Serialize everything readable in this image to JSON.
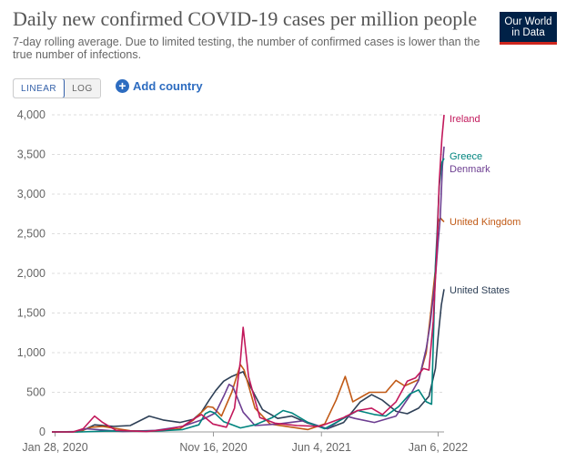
{
  "header": {
    "title": "Daily new confirmed COVID-19 cases per million people",
    "subtitle": "7-day rolling average. Due to limited testing, the number of confirmed cases is lower than the true number of infections.",
    "logo_line1": "Our World",
    "logo_line2": "in Data"
  },
  "controls": {
    "linear_label": "LINEAR",
    "log_label": "LOG",
    "add_country_label": "Add country",
    "selected_scale": "linear"
  },
  "colors": {
    "Ireland": "#c2185b",
    "Greece": "#00847e",
    "Denmark": "#6d3e91",
    "United Kingdom": "#c15a16",
    "United States": "#2e4057"
  },
  "chart_data": {
    "type": "line",
    "title": "Daily new confirmed COVID-19 cases per million people",
    "subtitle": "7-day rolling average. Due to limited testing, the number of confirmed cases is lower than the true number of infections.",
    "ylim": [
      0,
      4000
    ],
    "y_ticks": [
      0,
      500,
      1000,
      1500,
      2000,
      2500,
      3000,
      3500,
      4000
    ],
    "y_tick_labels": [
      "0",
      "500",
      "1,000",
      "1,500",
      "2,000",
      "2,500",
      "3,000",
      "3,500",
      "4,000"
    ],
    "x_range": [
      "2020-01-22",
      "2022-01-17"
    ],
    "x_ticks": [
      "2020-01-28",
      "2020-11-16",
      "2021-06-04",
      "2022-01-06"
    ],
    "x_tick_labels": [
      "Jan 28, 2020",
      "Nov 16, 2020",
      "Jun 4, 2021",
      "Jan 6, 2022"
    ],
    "grid": "horizontal dashed",
    "legend": "line-end labels",
    "series": [
      {
        "name": "Ireland",
        "points": [
          [
            "2020-01-22",
            0
          ],
          [
            "2020-03-01",
            0
          ],
          [
            "2020-03-20",
            40
          ],
          [
            "2020-04-10",
            200
          ],
          [
            "2020-04-25",
            120
          ],
          [
            "2020-05-20",
            20
          ],
          [
            "2020-07-15",
            5
          ],
          [
            "2020-08-20",
            30
          ],
          [
            "2020-09-20",
            70
          ],
          [
            "2020-10-10",
            160
          ],
          [
            "2020-10-25",
            220
          ],
          [
            "2020-11-15",
            100
          ],
          [
            "2020-12-10",
            60
          ],
          [
            "2020-12-25",
            300
          ],
          [
            "2021-01-05",
            900
          ],
          [
            "2021-01-10",
            1320
          ],
          [
            "2021-01-20",
            700
          ],
          [
            "2021-02-10",
            180
          ],
          [
            "2021-03-10",
            110
          ],
          [
            "2021-04-20",
            80
          ],
          [
            "2021-06-01",
            70
          ],
          [
            "2021-07-15",
            180
          ],
          [
            "2021-08-10",
            270
          ],
          [
            "2021-09-05",
            300
          ],
          [
            "2021-09-25",
            220
          ],
          [
            "2021-10-20",
            380
          ],
          [
            "2021-11-10",
            640
          ],
          [
            "2021-11-25",
            680
          ],
          [
            "2021-12-10",
            800
          ],
          [
            "2021-12-20",
            780
          ],
          [
            "2021-12-28",
            1400
          ],
          [
            "2022-01-03",
            2200
          ],
          [
            "2022-01-08",
            3150
          ],
          [
            "2022-01-13",
            3700
          ],
          [
            "2022-01-17",
            4000
          ]
        ]
      },
      {
        "name": "Greece",
        "points": [
          [
            "2020-01-22",
            0
          ],
          [
            "2020-03-15",
            0
          ],
          [
            "2020-05-01",
            10
          ],
          [
            "2020-08-01",
            10
          ],
          [
            "2020-09-20",
            30
          ],
          [
            "2020-10-20",
            90
          ],
          [
            "2020-11-01",
            230
          ],
          [
            "2020-11-10",
            260
          ],
          [
            "2020-11-18",
            240
          ],
          [
            "2020-12-05",
            130
          ],
          [
            "2021-01-05",
            50
          ],
          [
            "2021-02-01",
            90
          ],
          [
            "2021-03-05",
            180
          ],
          [
            "2021-03-25",
            270
          ],
          [
            "2021-04-10",
            240
          ],
          [
            "2021-05-10",
            120
          ],
          [
            "2021-06-10",
            40
          ],
          [
            "2021-07-15",
            170
          ],
          [
            "2021-08-10",
            270
          ],
          [
            "2021-09-10",
            220
          ],
          [
            "2021-10-01",
            200
          ],
          [
            "2021-10-25",
            320
          ],
          [
            "2021-11-15",
            480
          ],
          [
            "2021-12-01",
            530
          ],
          [
            "2021-12-15",
            380
          ],
          [
            "2021-12-25",
            350
          ],
          [
            "2022-01-01",
            2100
          ],
          [
            "2022-01-04",
            2500
          ],
          [
            "2022-01-08",
            3100
          ],
          [
            "2022-01-13",
            3400
          ],
          [
            "2022-01-17",
            3450
          ]
        ]
      },
      {
        "name": "Denmark",
        "points": [
          [
            "2020-01-22",
            0
          ],
          [
            "2020-03-01",
            0
          ],
          [
            "2020-03-25",
            40
          ],
          [
            "2020-04-15",
            30
          ],
          [
            "2020-06-01",
            5
          ],
          [
            "2020-08-01",
            20
          ],
          [
            "2020-09-20",
            70
          ],
          [
            "2020-10-25",
            150
          ],
          [
            "2020-11-20",
            240
          ],
          [
            "2020-12-05",
            450
          ],
          [
            "2020-12-15",
            600
          ],
          [
            "2020-12-22",
            570
          ],
          [
            "2021-01-10",
            250
          ],
          [
            "2021-02-01",
            80
          ],
          [
            "2021-03-15",
            100
          ],
          [
            "2021-05-01",
            140
          ],
          [
            "2021-06-15",
            40
          ],
          [
            "2021-07-20",
            200
          ],
          [
            "2021-08-05",
            170
          ],
          [
            "2021-09-10",
            120
          ],
          [
            "2021-10-20",
            200
          ],
          [
            "2021-11-15",
            460
          ],
          [
            "2021-12-01",
            650
          ],
          [
            "2021-12-15",
            1050
          ],
          [
            "2021-12-22",
            1350
          ],
          [
            "2022-01-01",
            1950
          ],
          [
            "2022-01-06",
            2400
          ],
          [
            "2022-01-10",
            2700
          ],
          [
            "2022-01-14",
            3350
          ],
          [
            "2022-01-17",
            3600
          ]
        ]
      },
      {
        "name": "United Kingdom",
        "points": [
          [
            "2020-01-22",
            0
          ],
          [
            "2020-03-10",
            0
          ],
          [
            "2020-04-05",
            60
          ],
          [
            "2020-04-25",
            70
          ],
          [
            "2020-06-15",
            15
          ],
          [
            "2020-08-01",
            10
          ],
          [
            "2020-09-15",
            40
          ],
          [
            "2020-10-10",
            150
          ],
          [
            "2020-11-05",
            320
          ],
          [
            "2020-11-15",
            310
          ],
          [
            "2020-12-01",
            200
          ],
          [
            "2020-12-20",
            500
          ],
          [
            "2021-01-05",
            850
          ],
          [
            "2021-01-12",
            780
          ],
          [
            "2021-02-01",
            300
          ],
          [
            "2021-03-01",
            100
          ],
          [
            "2021-05-10",
            30
          ],
          [
            "2021-06-10",
            100
          ],
          [
            "2021-07-01",
            400
          ],
          [
            "2021-07-18",
            700
          ],
          [
            "2021-08-01",
            380
          ],
          [
            "2021-09-01",
            500
          ],
          [
            "2021-10-01",
            500
          ],
          [
            "2021-10-20",
            650
          ],
          [
            "2021-11-05",
            580
          ],
          [
            "2021-12-01",
            660
          ],
          [
            "2021-12-15",
            1000
          ],
          [
            "2021-12-25",
            1600
          ],
          [
            "2022-01-01",
            2050
          ],
          [
            "2022-01-06",
            2650
          ],
          [
            "2022-01-10",
            2700
          ],
          [
            "2022-01-17",
            2650
          ]
        ]
      },
      {
        "name": "United States",
        "points": [
          [
            "2020-01-22",
            0
          ],
          [
            "2020-03-15",
            5
          ],
          [
            "2020-04-10",
            90
          ],
          [
            "2020-05-15",
            70
          ],
          [
            "2020-06-15",
            80
          ],
          [
            "2020-07-20",
            200
          ],
          [
            "2020-08-15",
            150
          ],
          [
            "2020-09-15",
            120
          ],
          [
            "2020-10-10",
            160
          ],
          [
            "2020-10-25",
            250
          ],
          [
            "2020-11-08",
            400
          ],
          [
            "2020-11-20",
            520
          ],
          [
            "2020-12-05",
            640
          ],
          [
            "2020-12-20",
            700
          ],
          [
            "2021-01-10",
            760
          ],
          [
            "2021-01-25",
            550
          ],
          [
            "2021-02-15",
            280
          ],
          [
            "2021-03-15",
            170
          ],
          [
            "2021-04-10",
            200
          ],
          [
            "2021-05-10",
            110
          ],
          [
            "2021-06-15",
            40
          ],
          [
            "2021-07-15",
            120
          ],
          [
            "2021-08-15",
            380
          ],
          [
            "2021-09-05",
            470
          ],
          [
            "2021-09-25",
            400
          ],
          [
            "2021-10-20",
            260
          ],
          [
            "2021-11-10",
            230
          ],
          [
            "2021-12-01",
            300
          ],
          [
            "2021-12-20",
            450
          ],
          [
            "2022-01-01",
            800
          ],
          [
            "2022-01-06",
            1200
          ],
          [
            "2022-01-12",
            1600
          ],
          [
            "2022-01-17",
            1800
          ]
        ]
      }
    ]
  }
}
